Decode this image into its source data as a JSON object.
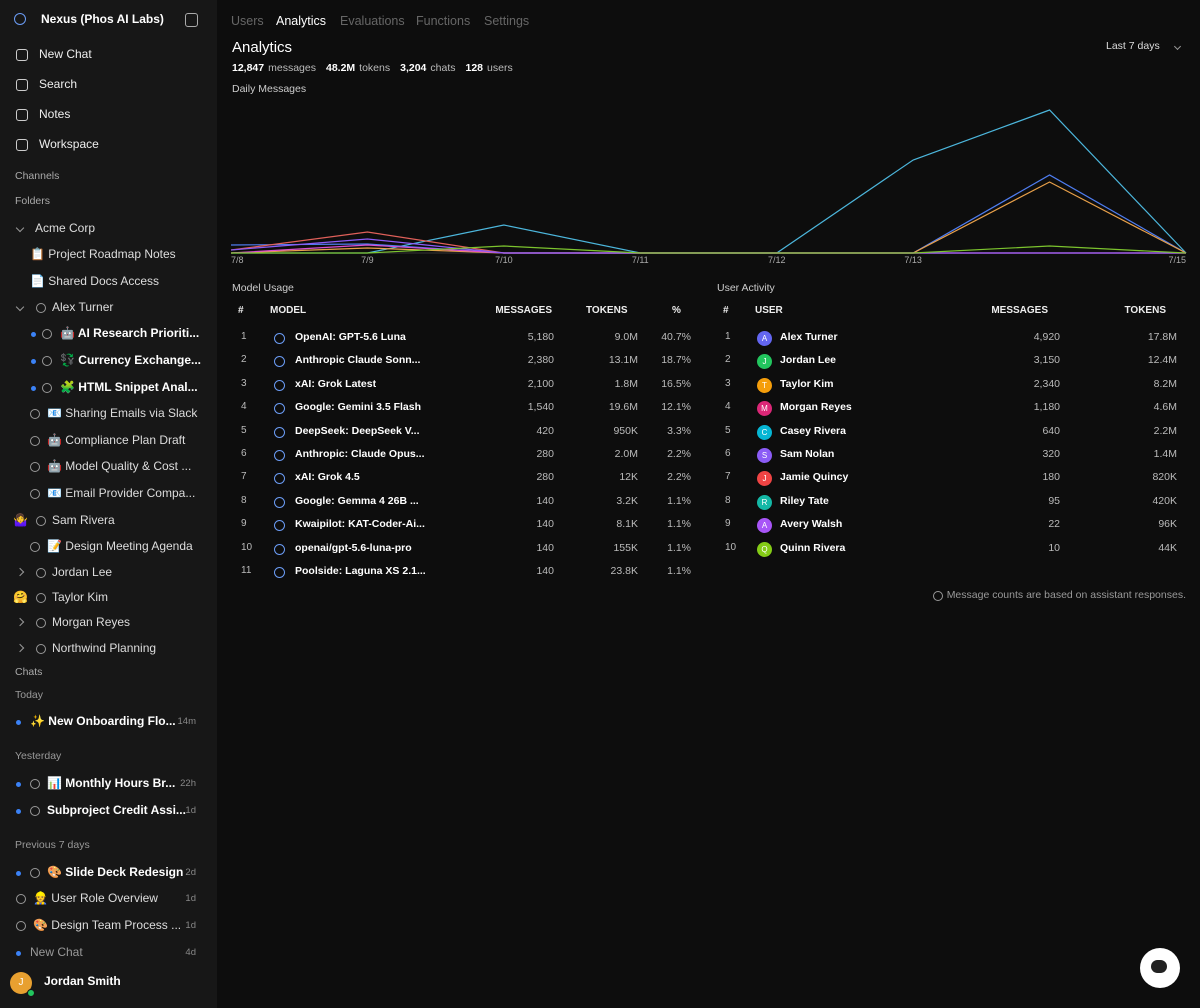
{
  "sidebar": {
    "brand": "Nexus (Phos AI Labs)",
    "nav": [
      "New Chat",
      "Search",
      "Notes",
      "Workspace"
    ],
    "channels_label": "Channels",
    "folders_label": "Folders",
    "folders": [
      {
        "text": "Acme Corp"
      },
      {
        "text": "📋 Project Roadmap Notes"
      },
      {
        "text": "📄 Shared Docs Access"
      },
      {
        "text": "Alex Turner"
      },
      {
        "text": "🤖 AI Research Prioriti...",
        "unread": true
      },
      {
        "text": "💱 Currency Exchange...",
        "unread": true
      },
      {
        "text": "🧩 HTML Snippet Anal...",
        "unread": true
      },
      {
        "text": "📧 Sharing Emails via Slack"
      },
      {
        "text": "🤖 Compliance Plan Draft"
      },
      {
        "text": "🤖 Model Quality & Cost ..."
      },
      {
        "text": "📧 Email Provider Compa..."
      },
      {
        "text": "Sam Rivera",
        "emoji": "🤷‍♀️"
      },
      {
        "text": "📝 Design Meeting Agenda"
      },
      {
        "text": "Jordan Lee"
      },
      {
        "text": "Taylor Kim",
        "emoji": "🤗"
      },
      {
        "text": "Morgan Reyes"
      },
      {
        "text": "Northwind Planning"
      }
    ],
    "chats_label": "Chats",
    "groups": [
      {
        "label": "Today",
        "chats": [
          {
            "text": "✨ New Onboarding Flo...",
            "time": "14m",
            "unread": true
          }
        ]
      },
      {
        "label": "Yesterday",
        "chats": [
          {
            "text": "📊 Monthly Hours Br...",
            "time": "22h",
            "unread": true
          },
          {
            "text": "Subproject Credit Assi...",
            "time": "1d",
            "unread": true
          }
        ]
      },
      {
        "label": "Previous 7 days",
        "chats": [
          {
            "text": "🎨 Slide Deck Redesign",
            "time": "2d",
            "unread": true
          },
          {
            "text": "👷 User Role Overview",
            "time": "1d"
          },
          {
            "text": "🎨 Design Team Process ...",
            "time": "1d"
          },
          {
            "text": "New Chat",
            "time": "4d",
            "unread": true
          }
        ]
      }
    ],
    "user": {
      "name": "Jordan Smith",
      "initial": "J"
    }
  },
  "tabs": [
    "Users",
    "Analytics",
    "Evaluations",
    "Functions",
    "Settings"
  ],
  "active_tab": 1,
  "header": {
    "title": "Analytics",
    "range": "Last 7 days",
    "stats": [
      {
        "value": "12,847",
        "label": "messages"
      },
      {
        "value": "48.2M",
        "label": "tokens"
      },
      {
        "value": "3,204",
        "label": "chats"
      },
      {
        "value": "128",
        "label": "users"
      }
    ]
  },
  "chart_data": {
    "type": "line",
    "title": "Daily Messages",
    "categories": [
      "7/8",
      "7/9",
      "7/10",
      "7/11",
      "7/12",
      "7/13",
      null,
      "7/15"
    ],
    "ylim": [
      0,
      150
    ],
    "series": [
      {
        "color": "#4cb6dc",
        "values": [
          0,
          0,
          28,
          0,
          0,
          93,
          143,
          0
        ]
      },
      {
        "color": "#4f7df0",
        "values": [
          8,
          9,
          0,
          0,
          0,
          0,
          78,
          0
        ]
      },
      {
        "color": "#e8a04a",
        "values": [
          0,
          5,
          0,
          0,
          0,
          0,
          71,
          0
        ]
      },
      {
        "color": "#e0605a",
        "values": [
          3,
          21,
          0,
          0,
          0,
          0,
          0,
          0
        ]
      },
      {
        "color": "#d94fd0",
        "values": [
          0,
          8,
          0,
          0,
          0,
          0,
          0,
          0
        ]
      },
      {
        "color": "#8b5cf6",
        "values": [
          3,
          14,
          0,
          0,
          0,
          0,
          0,
          0
        ]
      },
      {
        "color": "#7cc42e",
        "values": [
          0,
          0,
          7,
          0,
          0,
          0,
          7,
          0
        ]
      }
    ]
  },
  "model_usage": {
    "title": "Model Usage",
    "columns": [
      "#",
      "MODEL",
      "MESSAGES",
      "TOKENS",
      "%"
    ],
    "rows": [
      [
        "1",
        "OpenAI: GPT-5.6 Luna",
        "5,180",
        "9.0M",
        "40.7%"
      ],
      [
        "2",
        "Anthropic Claude Sonn...",
        "2,380",
        "13.1M",
        "18.7%"
      ],
      [
        "3",
        "xAI: Grok Latest",
        "2,100",
        "1.8M",
        "16.5%"
      ],
      [
        "4",
        "Google: Gemini 3.5 Flash",
        "1,540",
        "19.6M",
        "12.1%"
      ],
      [
        "5",
        "DeepSeek: DeepSeek V...",
        "420",
        "950K",
        "3.3%"
      ],
      [
        "6",
        "Anthropic: Claude Opus...",
        "280",
        "2.0M",
        "2.2%"
      ],
      [
        "7",
        "xAI: Grok 4.5",
        "280",
        "12K",
        "2.2%"
      ],
      [
        "8",
        "Google: Gemma 4 26B ...",
        "140",
        "3.2K",
        "1.1%"
      ],
      [
        "9",
        "Kwaipilot: KAT-Coder-Ai...",
        "140",
        "8.1K",
        "1.1%"
      ],
      [
        "10",
        "openai/gpt-5.6-luna-pro",
        "140",
        "155K",
        "1.1%"
      ],
      [
        "11",
        "Poolside: Laguna XS 2.1...",
        "140",
        "23.8K",
        "1.1%"
      ]
    ]
  },
  "user_activity": {
    "title": "User Activity",
    "columns": [
      "#",
      "USER",
      "MESSAGES",
      "TOKENS"
    ],
    "rows": [
      {
        "rank": "1",
        "initial": "A",
        "name": "Alex Turner",
        "messages": "4,920",
        "tokens": "17.8M",
        "color": "#6366f1"
      },
      {
        "rank": "2",
        "initial": "J",
        "name": "Jordan Lee",
        "messages": "3,150",
        "tokens": "12.4M",
        "color": "#22c55e"
      },
      {
        "rank": "3",
        "initial": "T",
        "name": "Taylor Kim",
        "messages": "2,340",
        "tokens": "8.2M",
        "color": "#f59e0b"
      },
      {
        "rank": "4",
        "initial": "M",
        "name": "Morgan Reyes",
        "messages": "1,180",
        "tokens": "4.6M",
        "color": "#db2777"
      },
      {
        "rank": "5",
        "initial": "C",
        "name": "Casey Rivera",
        "messages": "640",
        "tokens": "2.2M",
        "color": "#06b6d4"
      },
      {
        "rank": "6",
        "initial": "S",
        "name": "Sam Nolan",
        "messages": "320",
        "tokens": "1.4M",
        "color": "#8b5cf6"
      },
      {
        "rank": "7",
        "initial": "J",
        "name": "Jamie Quincy",
        "messages": "180",
        "tokens": "820K",
        "color": "#ef4444"
      },
      {
        "rank": "8",
        "initial": "R",
        "name": "Riley Tate",
        "messages": "95",
        "tokens": "420K",
        "color": "#14b8a6"
      },
      {
        "rank": "9",
        "initial": "A",
        "name": "Avery Walsh",
        "messages": "22",
        "tokens": "96K",
        "color": "#a855f7"
      },
      {
        "rank": "10",
        "initial": "Q",
        "name": "Quinn Rivera",
        "messages": "10",
        "tokens": "44K",
        "color": "#84cc16"
      }
    ]
  },
  "note": "Message counts are based on assistant responses."
}
